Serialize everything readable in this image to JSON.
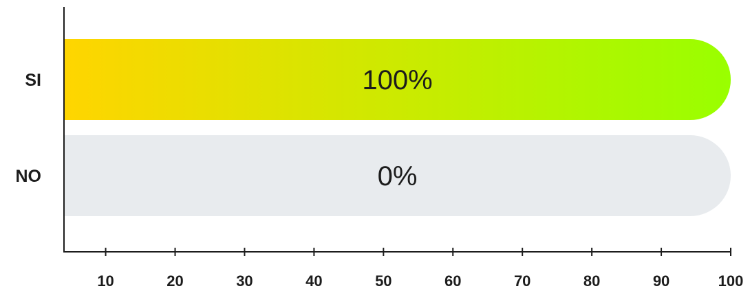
{
  "chart_data": {
    "type": "bar",
    "orientation": "horizontal",
    "categories": [
      "SI",
      "NO"
    ],
    "values": [
      100,
      0
    ],
    "value_labels": [
      "100%",
      "0%"
    ],
    "xlim": [
      4,
      100
    ],
    "xticks": [
      10,
      20,
      30,
      40,
      50,
      60,
      70,
      80,
      90,
      100
    ],
    "grid": false,
    "legend": "none"
  },
  "colors": {
    "bar_gradient_start": "#FFD500",
    "bar_gradient_end": "#99FF00",
    "bar_background": "#E8EBEE",
    "axis": "#1C1C1C",
    "text": "#1C1C1C"
  }
}
